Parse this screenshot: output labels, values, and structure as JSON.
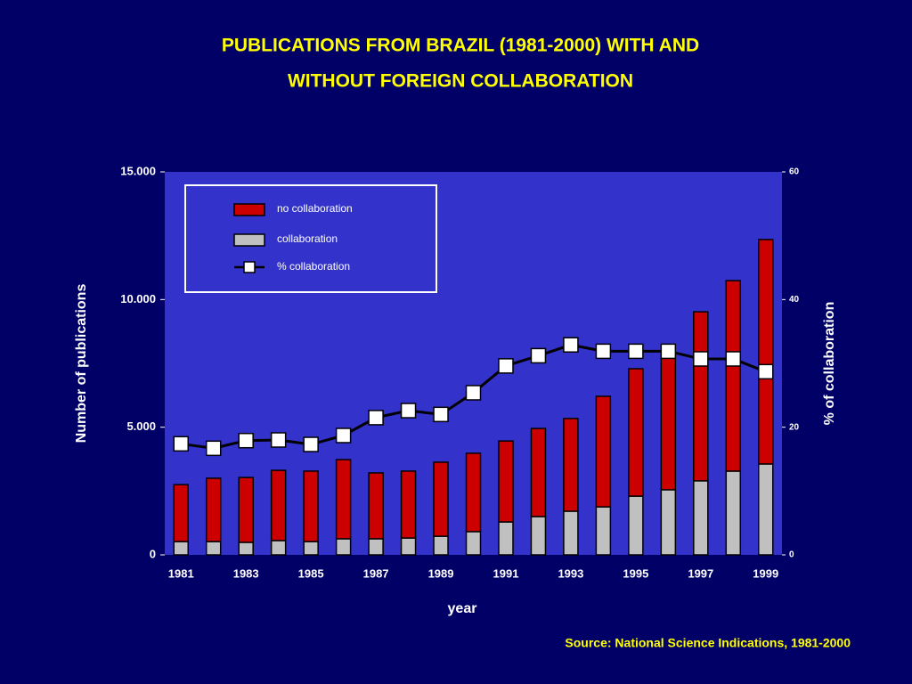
{
  "chart_data": {
    "type": "bar",
    "stacked": true,
    "title": "PUBLICATIONS FROM BRAZIL (1981-2000) WITH AND",
    "subtitle": "WITHOUT FOREIGN COLLABORATION",
    "xlabel": "year",
    "ylabel": "Number of publications",
    "y2label": "% of collaboration",
    "source": "Source: National Science Indications, 1981-2000",
    "categories": [
      "1981",
      null,
      "1983",
      null,
      "1985",
      null,
      "1987",
      null,
      "1989",
      null,
      "1991",
      null,
      "1993",
      null,
      "1995",
      null,
      "1997",
      null,
      "1999"
    ],
    "series": [
      {
        "name": "no collaboration",
        "type": "bar",
        "color": "#cc0000",
        "values": [
          2230,
          2480,
          2540,
          2750,
          2760,
          3100,
          2580,
          2620,
          2900,
          3070,
          3170,
          3450,
          3630,
          4330,
          4990,
          5230,
          6620,
          7460,
          8790
        ]
      },
      {
        "name": "collaboration",
        "type": "bar",
        "color": "#c0c0c0",
        "values": [
          520,
          520,
          490,
          560,
          520,
          630,
          630,
          660,
          730,
          910,
          1290,
          1500,
          1710,
          1880,
          2300,
          2550,
          2900,
          3280,
          3560
        ]
      },
      {
        "name": "% collaboration",
        "type": "line",
        "axis": "y2",
        "color": "#000000",
        "marker_color": "#ffffff",
        "values": [
          17.4,
          16.7,
          17.9,
          18.0,
          17.3,
          18.7,
          21.5,
          22.6,
          22.0,
          25.4,
          29.6,
          31.2,
          32.9,
          31.9,
          31.9,
          31.9,
          30.7,
          30.7,
          28.7
        ]
      }
    ],
    "ylim": [
      0,
      15000
    ],
    "yticks": [
      0,
      {
        "value": 5000,
        "label": "5.000"
      },
      {
        "value": 10000,
        "label": "10.000"
      },
      {
        "value": 15000,
        "label": "15.000"
      }
    ],
    "y2lim": [
      0,
      60
    ],
    "y2ticks": [
      0,
      20,
      40,
      60
    ],
    "legend": "upper left"
  }
}
